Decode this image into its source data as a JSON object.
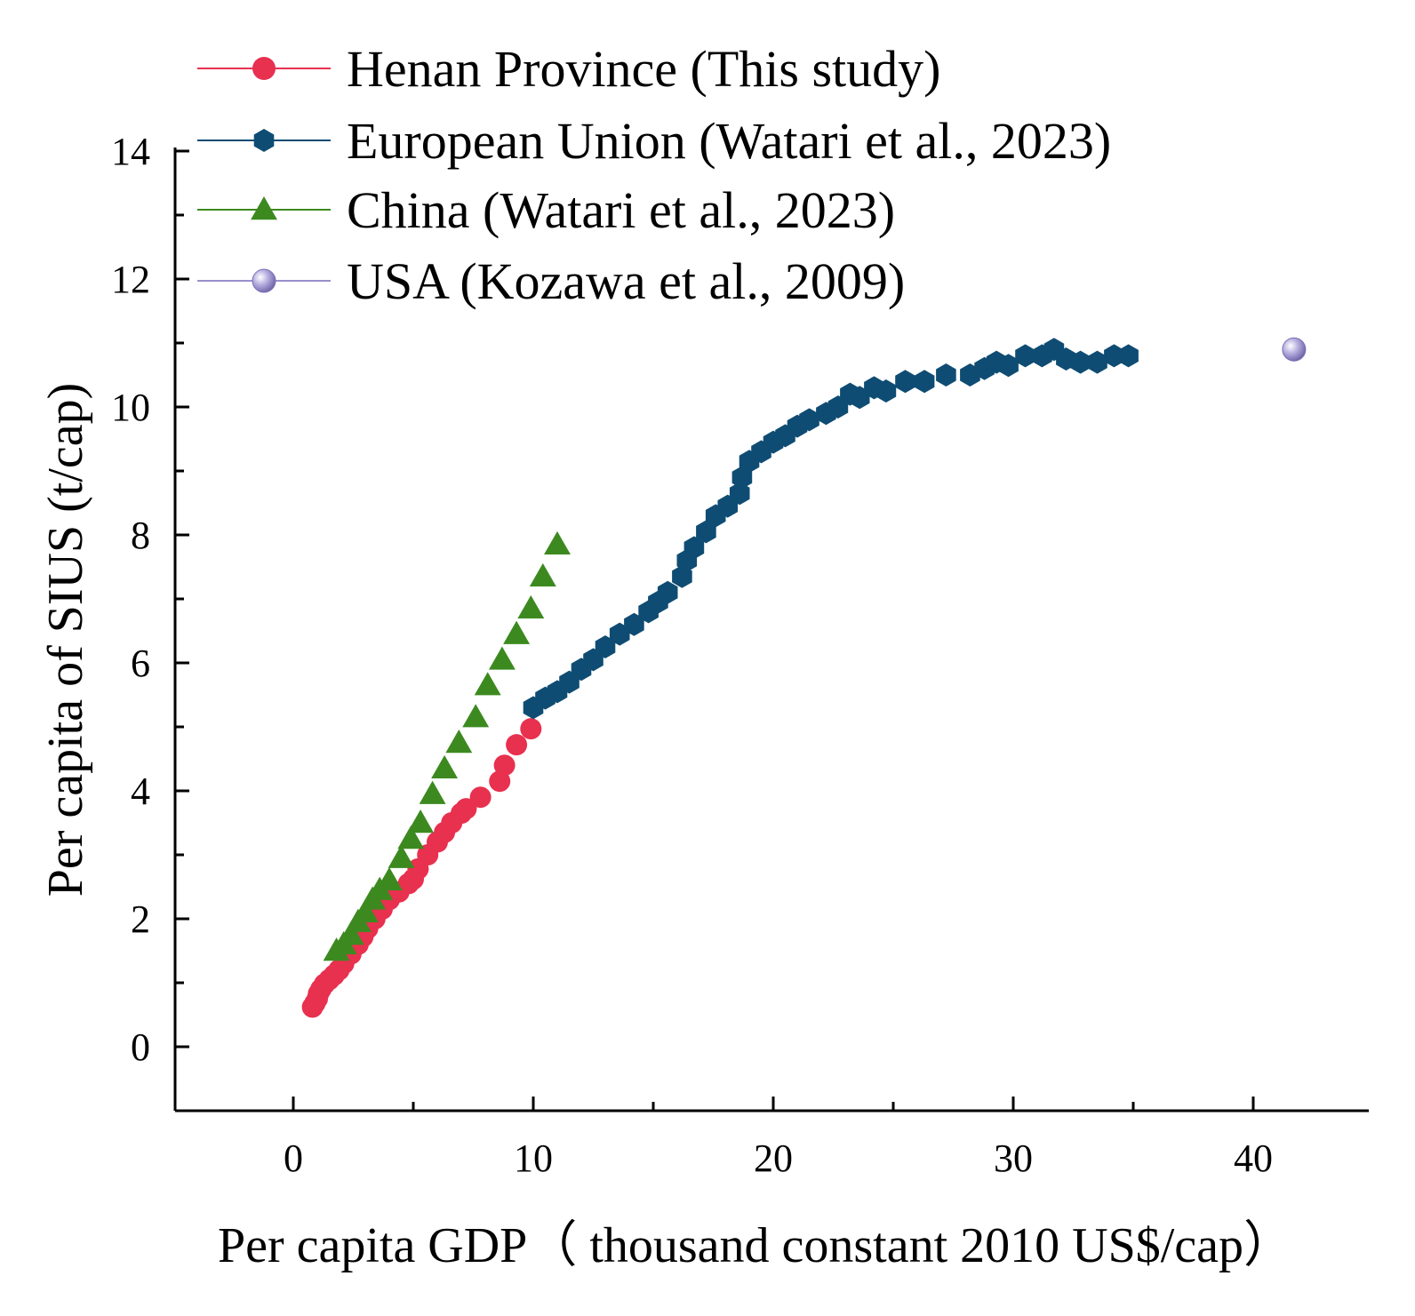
{
  "chart_data": {
    "type": "scatter",
    "title": "",
    "xlabel": "Per capita GDP（ thousand constant 2010 US$/cap）",
    "ylabel": "Per capita of SIUS (t/cap)",
    "xlim": [
      -5,
      45
    ],
    "ylim": [
      -1,
      14
    ],
    "xticks": [
      "0",
      "10",
      "20",
      "30",
      "40"
    ],
    "yticks": [
      "0",
      "2",
      "4",
      "6",
      "8",
      "10",
      "12",
      "14"
    ],
    "legend_position": "top-left",
    "grid": false,
    "series": [
      {
        "name": "Henan Province (This study)",
        "marker": "circle",
        "color": "#E8304F",
        "points": [
          [
            0.8,
            0.62
          ],
          [
            0.9,
            0.68
          ],
          [
            1.0,
            0.75
          ],
          [
            1.05,
            0.83
          ],
          [
            1.15,
            0.9
          ],
          [
            1.3,
            0.98
          ],
          [
            1.5,
            1.05
          ],
          [
            1.7,
            1.12
          ],
          [
            1.9,
            1.2
          ],
          [
            2.1,
            1.3
          ],
          [
            2.4,
            1.45
          ],
          [
            2.7,
            1.6
          ],
          [
            2.9,
            1.72
          ],
          [
            3.1,
            1.85
          ],
          [
            3.4,
            2.0
          ],
          [
            3.7,
            2.15
          ],
          [
            4.0,
            2.3
          ],
          [
            4.4,
            2.42
          ],
          [
            4.8,
            2.55
          ],
          [
            5.0,
            2.62
          ],
          [
            5.2,
            2.78
          ],
          [
            5.6,
            3.0
          ],
          [
            6.0,
            3.2
          ],
          [
            6.3,
            3.35
          ],
          [
            6.6,
            3.5
          ],
          [
            7.0,
            3.65
          ],
          [
            7.2,
            3.72
          ],
          [
            7.8,
            3.9
          ],
          [
            8.6,
            4.15
          ],
          [
            8.8,
            4.4
          ],
          [
            9.3,
            4.72
          ],
          [
            9.9,
            4.97
          ]
        ]
      },
      {
        "name": "European Union (Watari et al., 2023)",
        "marker": "hexagon",
        "color": "#0F4C73",
        "points": [
          [
            10.0,
            5.3
          ],
          [
            10.5,
            5.45
          ],
          [
            11.0,
            5.55
          ],
          [
            11.5,
            5.7
          ],
          [
            12.0,
            5.9
          ],
          [
            12.5,
            6.05
          ],
          [
            13.0,
            6.25
          ],
          [
            13.6,
            6.45
          ],
          [
            14.2,
            6.6
          ],
          [
            14.8,
            6.8
          ],
          [
            15.2,
            6.95
          ],
          [
            15.6,
            7.1
          ],
          [
            16.2,
            7.35
          ],
          [
            16.4,
            7.6
          ],
          [
            16.7,
            7.8
          ],
          [
            17.2,
            8.05
          ],
          [
            17.6,
            8.3
          ],
          [
            18.1,
            8.45
          ],
          [
            18.6,
            8.65
          ],
          [
            18.7,
            8.9
          ],
          [
            19.0,
            9.15
          ],
          [
            19.5,
            9.3
          ],
          [
            20.0,
            9.45
          ],
          [
            20.5,
            9.55
          ],
          [
            21.0,
            9.7
          ],
          [
            21.5,
            9.8
          ],
          [
            22.2,
            9.9
          ],
          [
            22.7,
            10.0
          ],
          [
            23.2,
            10.2
          ],
          [
            23.6,
            10.15
          ],
          [
            24.2,
            10.3
          ],
          [
            24.7,
            10.25
          ],
          [
            25.5,
            10.4
          ],
          [
            26.3,
            10.4
          ],
          [
            27.2,
            10.5
          ],
          [
            28.2,
            10.5
          ],
          [
            28.8,
            10.6
          ],
          [
            29.3,
            10.7
          ],
          [
            29.8,
            10.65
          ],
          [
            30.5,
            10.8
          ],
          [
            31.2,
            10.8
          ],
          [
            31.7,
            10.9
          ],
          [
            32.2,
            10.75
          ],
          [
            32.8,
            10.7
          ],
          [
            33.5,
            10.7
          ],
          [
            34.2,
            10.8
          ],
          [
            34.8,
            10.8
          ]
        ]
      },
      {
        "name": "China (Watari et al., 2023)",
        "marker": "triangle",
        "color": "#3C8A1F",
        "points": [
          [
            1.8,
            1.5
          ],
          [
            2.1,
            1.6
          ],
          [
            2.4,
            1.75
          ],
          [
            2.7,
            1.95
          ],
          [
            3.0,
            2.1
          ],
          [
            3.3,
            2.3
          ],
          [
            3.6,
            2.45
          ],
          [
            4.0,
            2.6
          ],
          [
            4.5,
            2.95
          ],
          [
            4.9,
            3.25
          ],
          [
            5.3,
            3.5
          ],
          [
            5.8,
            3.95
          ],
          [
            6.3,
            4.35
          ],
          [
            6.9,
            4.75
          ],
          [
            7.6,
            5.15
          ],
          [
            8.1,
            5.65
          ],
          [
            8.7,
            6.05
          ],
          [
            9.3,
            6.45
          ],
          [
            9.9,
            6.85
          ],
          [
            10.4,
            7.35
          ],
          [
            11.0,
            7.85
          ]
        ]
      },
      {
        "name": "USA (Kozawa et al., 2009)",
        "marker": "sphere",
        "color": "#9A8FCC",
        "points": [
          [
            41.7,
            10.9
          ]
        ]
      }
    ]
  }
}
